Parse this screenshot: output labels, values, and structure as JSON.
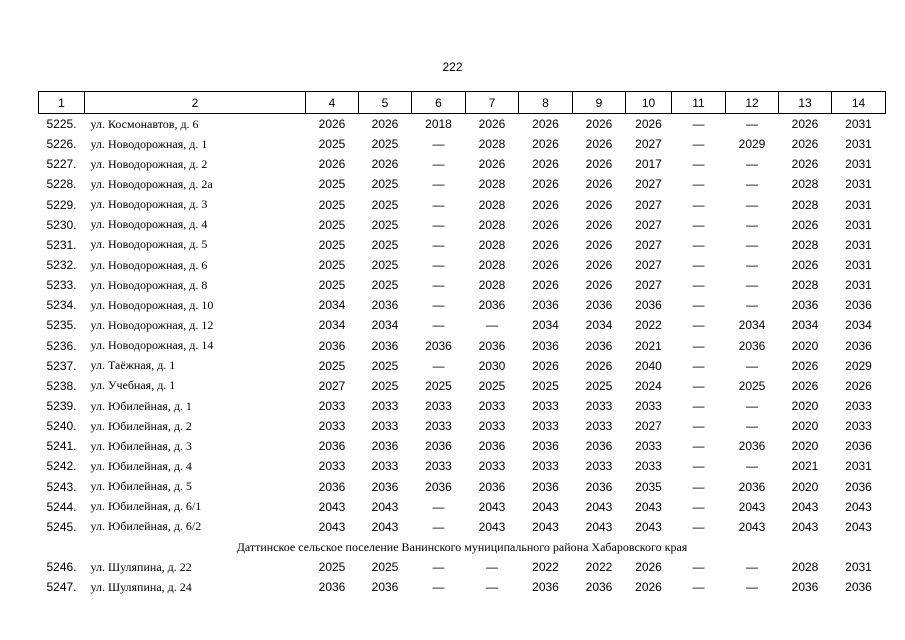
{
  "page_number": "222",
  "table": {
    "header": [
      "1",
      "2",
      "4",
      "5",
      "6",
      "7",
      "8",
      "9",
      "10",
      "11",
      "12",
      "13",
      "14"
    ],
    "rows": [
      [
        "5225.",
        "ул. Космонавтов, д. 6",
        "2026",
        "2026",
        "2018",
        "2026",
        "2026",
        "2026",
        "2026",
        "—",
        "—",
        "2026",
        "2031"
      ],
      [
        "5226.",
        "ул. Новодорожная, д. 1",
        "2025",
        "2025",
        "—",
        "2028",
        "2026",
        "2026",
        "2027",
        "—",
        "2029",
        "2026",
        "2031"
      ],
      [
        "5227.",
        "ул. Новодорожная, д. 2",
        "2026",
        "2026",
        "—",
        "2026",
        "2026",
        "2026",
        "2017",
        "—",
        "—",
        "2026",
        "2031"
      ],
      [
        "5228.",
        "ул. Новодорожная, д. 2а",
        "2025",
        "2025",
        "—",
        "2028",
        "2026",
        "2026",
        "2027",
        "—",
        "—",
        "2028",
        "2031"
      ],
      [
        "5229.",
        "ул. Новодорожная, д. 3",
        "2025",
        "2025",
        "—",
        "2028",
        "2026",
        "2026",
        "2027",
        "—",
        "—",
        "2028",
        "2031"
      ],
      [
        "5230.",
        "ул. Новодорожная, д. 4",
        "2025",
        "2025",
        "—",
        "2028",
        "2026",
        "2026",
        "2027",
        "—",
        "—",
        "2026",
        "2031"
      ],
      [
        "5231.",
        "ул. Новодорожная, д. 5",
        "2025",
        "2025",
        "—",
        "2028",
        "2026",
        "2026",
        "2027",
        "—",
        "—",
        "2028",
        "2031"
      ],
      [
        "5232.",
        "ул. Новодорожная, д. 6",
        "2025",
        "2025",
        "—",
        "2028",
        "2026",
        "2026",
        "2027",
        "—",
        "—",
        "2026",
        "2031"
      ],
      [
        "5233.",
        "ул. Новодорожная, д. 8",
        "2025",
        "2025",
        "—",
        "2028",
        "2026",
        "2026",
        "2027",
        "—",
        "—",
        "2028",
        "2031"
      ],
      [
        "5234.",
        "ул. Новодорожная, д. 10",
        "2034",
        "2036",
        "—",
        "2036",
        "2036",
        "2036",
        "2036",
        "—",
        "—",
        "2036",
        "2036"
      ],
      [
        "5235.",
        "ул. Новодорожная, д. 12",
        "2034",
        "2034",
        "—",
        "—",
        "2034",
        "2034",
        "2022",
        "—",
        "2034",
        "2034",
        "2034"
      ],
      [
        "5236.",
        "ул. Новодорожная, д. 14",
        "2036",
        "2036",
        "2036",
        "2036",
        "2036",
        "2036",
        "2021",
        "—",
        "2036",
        "2020",
        "2036"
      ],
      [
        "5237.",
        "ул. Таёжная, д. 1",
        "2025",
        "2025",
        "—",
        "2030",
        "2026",
        "2026",
        "2040",
        "—",
        "—",
        "2026",
        "2029"
      ],
      [
        "5238.",
        "ул. Учебная, д. 1",
        "2027",
        "2025",
        "2025",
        "2025",
        "2025",
        "2025",
        "2024",
        "—",
        "2025",
        "2026",
        "2026"
      ],
      [
        "5239.",
        "ул. Юбилейная, д. 1",
        "2033",
        "2033",
        "2033",
        "2033",
        "2033",
        "2033",
        "2033",
        "—",
        "—",
        "2020",
        "2033"
      ],
      [
        "5240.",
        "ул. Юбилейная, д. 2",
        "2033",
        "2033",
        "2033",
        "2033",
        "2033",
        "2033",
        "2027",
        "—",
        "—",
        "2020",
        "2033"
      ],
      [
        "5241.",
        "ул. Юбилейная, д. 3",
        "2036",
        "2036",
        "2036",
        "2036",
        "2036",
        "2036",
        "2033",
        "—",
        "2036",
        "2020",
        "2036"
      ],
      [
        "5242.",
        "ул. Юбилейная, д. 4",
        "2033",
        "2033",
        "2033",
        "2033",
        "2033",
        "2033",
        "2033",
        "—",
        "—",
        "2021",
        "2031"
      ],
      [
        "5243.",
        "ул. Юбилейная, д. 5",
        "2036",
        "2036",
        "2036",
        "2036",
        "2036",
        "2036",
        "2035",
        "—",
        "2036",
        "2020",
        "2036"
      ],
      [
        "5244.",
        "ул. Юбилейная, д. 6/1",
        "2043",
        "2043",
        "—",
        "2043",
        "2043",
        "2043",
        "2043",
        "—",
        "2043",
        "2043",
        "2043"
      ],
      [
        "5245.",
        "ул. Юбилейная, д. 6/2",
        "2043",
        "2043",
        "—",
        "2043",
        "2043",
        "2043",
        "2043",
        "—",
        "2043",
        "2043",
        "2043"
      ]
    ],
    "section": "Даттинское сельское поселение Ванинского муниципального района Хабаровского края",
    "rows_after": [
      [
        "5246.",
        "ул. Шуляпина, д. 22",
        "2025",
        "2025",
        "—",
        "—",
        "2022",
        "2022",
        "2026",
        "—",
        "—",
        "2028",
        "2031"
      ],
      [
        "5247.",
        "ул. Шуляпина, д. 24",
        "2036",
        "2036",
        "—",
        "—",
        "2036",
        "2036",
        "2026",
        "—",
        "—",
        "2036",
        "2036"
      ]
    ]
  }
}
